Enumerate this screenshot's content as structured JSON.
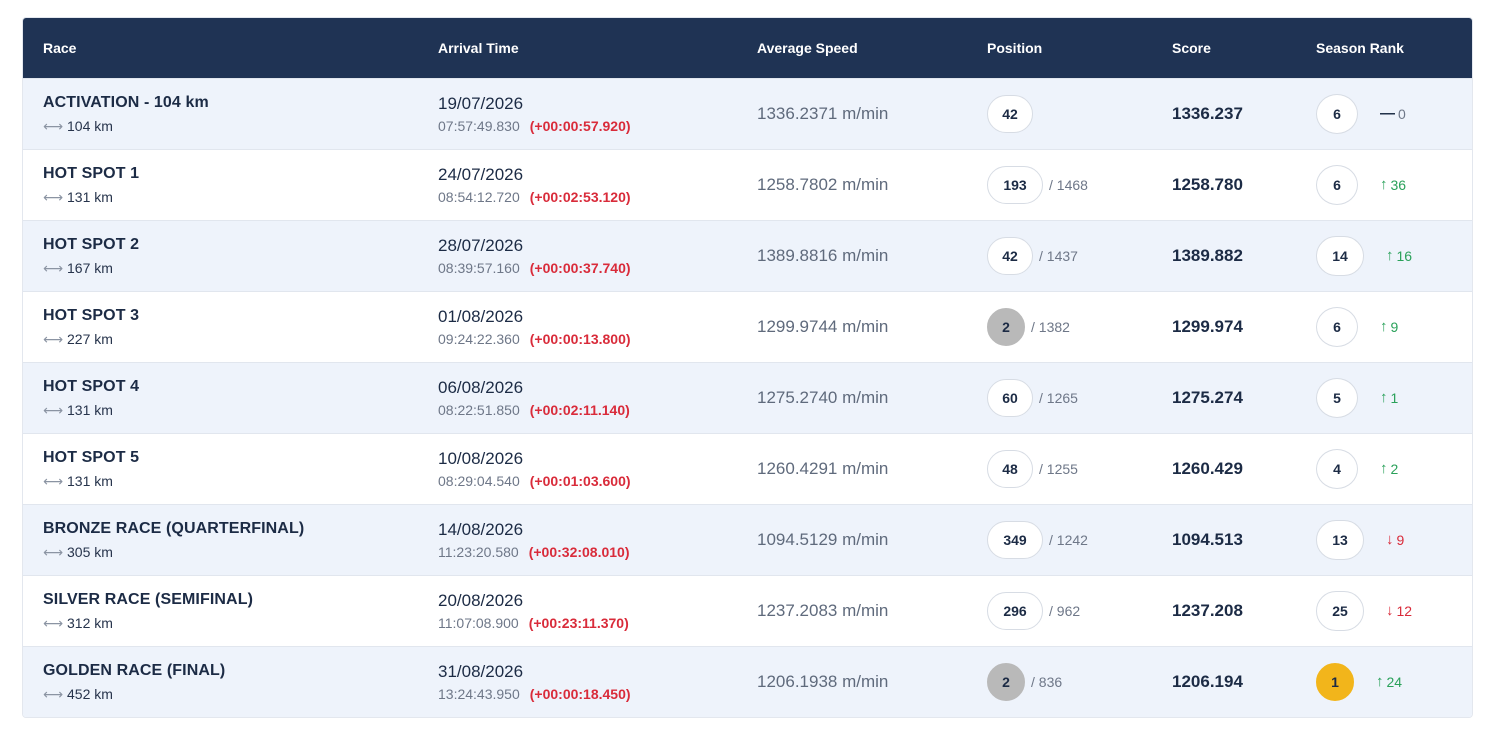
{
  "header": {
    "race": "Race",
    "arrival": "Arrival Time",
    "speed": "Average Speed",
    "position": "Position",
    "score": "Score",
    "season_rank": "Season Rank"
  },
  "rows": [
    {
      "race": "ACTIVATION - 104 km",
      "distance": "104 km",
      "date": "19/07/2026",
      "time": "07:57:49.830",
      "delta": "(+00:00:57.920)",
      "speed": "1336.2371 m/min",
      "position": "42",
      "total": "",
      "score": "1336.237",
      "rank": "6",
      "trend": "0",
      "trend_dir": "flat"
    },
    {
      "race": "HOT SPOT 1",
      "distance": "131 km",
      "date": "24/07/2026",
      "time": "08:54:12.720",
      "delta": "(+00:02:53.120)",
      "speed": "1258.7802 m/min",
      "position": "193",
      "total": "/ 1468",
      "score": "1258.780",
      "rank": "6",
      "trend": "36",
      "trend_dir": "up"
    },
    {
      "race": "HOT SPOT 2",
      "distance": "167 km",
      "date": "28/07/2026",
      "time": "08:39:57.160",
      "delta": "(+00:00:37.740)",
      "speed": "1389.8816 m/min",
      "position": "42",
      "total": "/ 1437",
      "score": "1389.882",
      "rank": "14",
      "trend": "16",
      "trend_dir": "up"
    },
    {
      "race": "HOT SPOT 3",
      "distance": "227 km",
      "date": "01/08/2026",
      "time": "09:24:22.360",
      "delta": "(+00:00:13.800)",
      "speed": "1299.9744 m/min",
      "position": "2",
      "total": "/ 1382",
      "score": "1299.974",
      "rank": "6",
      "trend": "9",
      "trend_dir": "up"
    },
    {
      "race": "HOT SPOT 4",
      "distance": "131 km",
      "date": "06/08/2026",
      "time": "08:22:51.850",
      "delta": "(+00:02:11.140)",
      "speed": "1275.2740 m/min",
      "position": "60",
      "total": "/ 1265",
      "score": "1275.274",
      "rank": "5",
      "trend": "1",
      "trend_dir": "up"
    },
    {
      "race": "HOT SPOT 5",
      "distance": "131 km",
      "date": "10/08/2026",
      "time": "08:29:04.540",
      "delta": "(+00:01:03.600)",
      "speed": "1260.4291 m/min",
      "position": "48",
      "total": "/ 1255",
      "score": "1260.429",
      "rank": "4",
      "trend": "2",
      "trend_dir": "up"
    },
    {
      "race": "BRONZE RACE (QUARTERFINAL)",
      "distance": "305 km",
      "date": "14/08/2026",
      "time": "11:23:20.580",
      "delta": "(+00:32:08.010)",
      "speed": "1094.5129 m/min",
      "position": "349",
      "total": "/ 1242",
      "score": "1094.513",
      "rank": "13",
      "trend": "9",
      "trend_dir": "down"
    },
    {
      "race": "SILVER RACE (SEMIFINAL)",
      "distance": "312 km",
      "date": "20/08/2026",
      "time": "11:07:08.900",
      "delta": "(+00:23:11.370)",
      "speed": "1237.2083 m/min",
      "position": "296",
      "total": "/ 962",
      "score": "1237.208",
      "rank": "25",
      "trend": "12",
      "trend_dir": "down"
    },
    {
      "race": "GOLDEN RACE (FINAL)",
      "distance": "452 km",
      "date": "31/08/2026",
      "time": "13:24:43.950",
      "delta": "(+00:00:18.450)",
      "speed": "1206.1938 m/min",
      "position": "2",
      "total": "/ 836",
      "score": "1206.194",
      "rank": "1",
      "trend": "24",
      "trend_dir": "up"
    }
  ],
  "colors": {
    "header_bg": "#1f3354",
    "row_alt": "#eef3fb",
    "delta_red": "#d92b3a",
    "trend_green": "#2aa15a",
    "silver_badge": "#b9b9b9",
    "gold_badge": "#f2b51b"
  }
}
